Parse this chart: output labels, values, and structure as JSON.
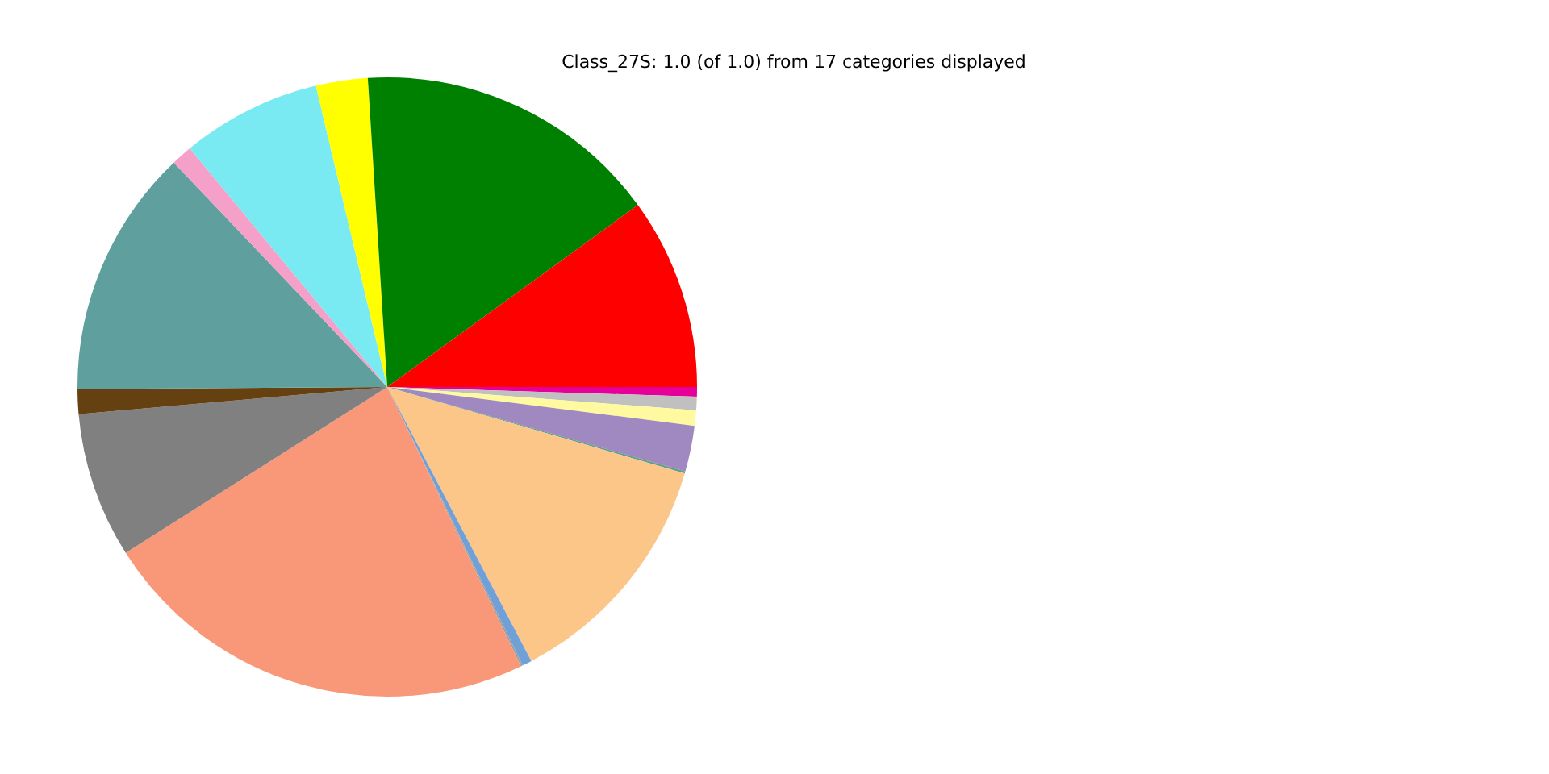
{
  "chart_data": {
    "type": "pie",
    "title": "Class_27S: 1.0 (of 1.0) from 17 categories displayed",
    "categories": [
      null,
      null,
      null,
      null,
      null,
      null,
      null,
      null,
      null,
      null,
      null,
      null,
      null,
      null,
      null,
      null,
      null
    ],
    "values": [
      0.5,
      0.7,
      0.8,
      2.4,
      0.1,
      12.8,
      0.5,
      0.1,
      23.1,
      7.6,
      1.3,
      13.0,
      1.1,
      7.3,
      2.7,
      16.0,
      10.0
    ],
    "colors": [
      "#e6009a",
      "#c0c0c0",
      "#fffaa0",
      "#a088c0",
      "#5f9e8a",
      "#fcc688",
      "#70a0d8",
      "#a0a0a0",
      "#f89878",
      "#808080",
      "#654010",
      "#5fa09e",
      "#f5a0c8",
      "#7aeaf2",
      "#ffff00",
      "#008000",
      "#ff0000"
    ],
    "legend": false
  }
}
